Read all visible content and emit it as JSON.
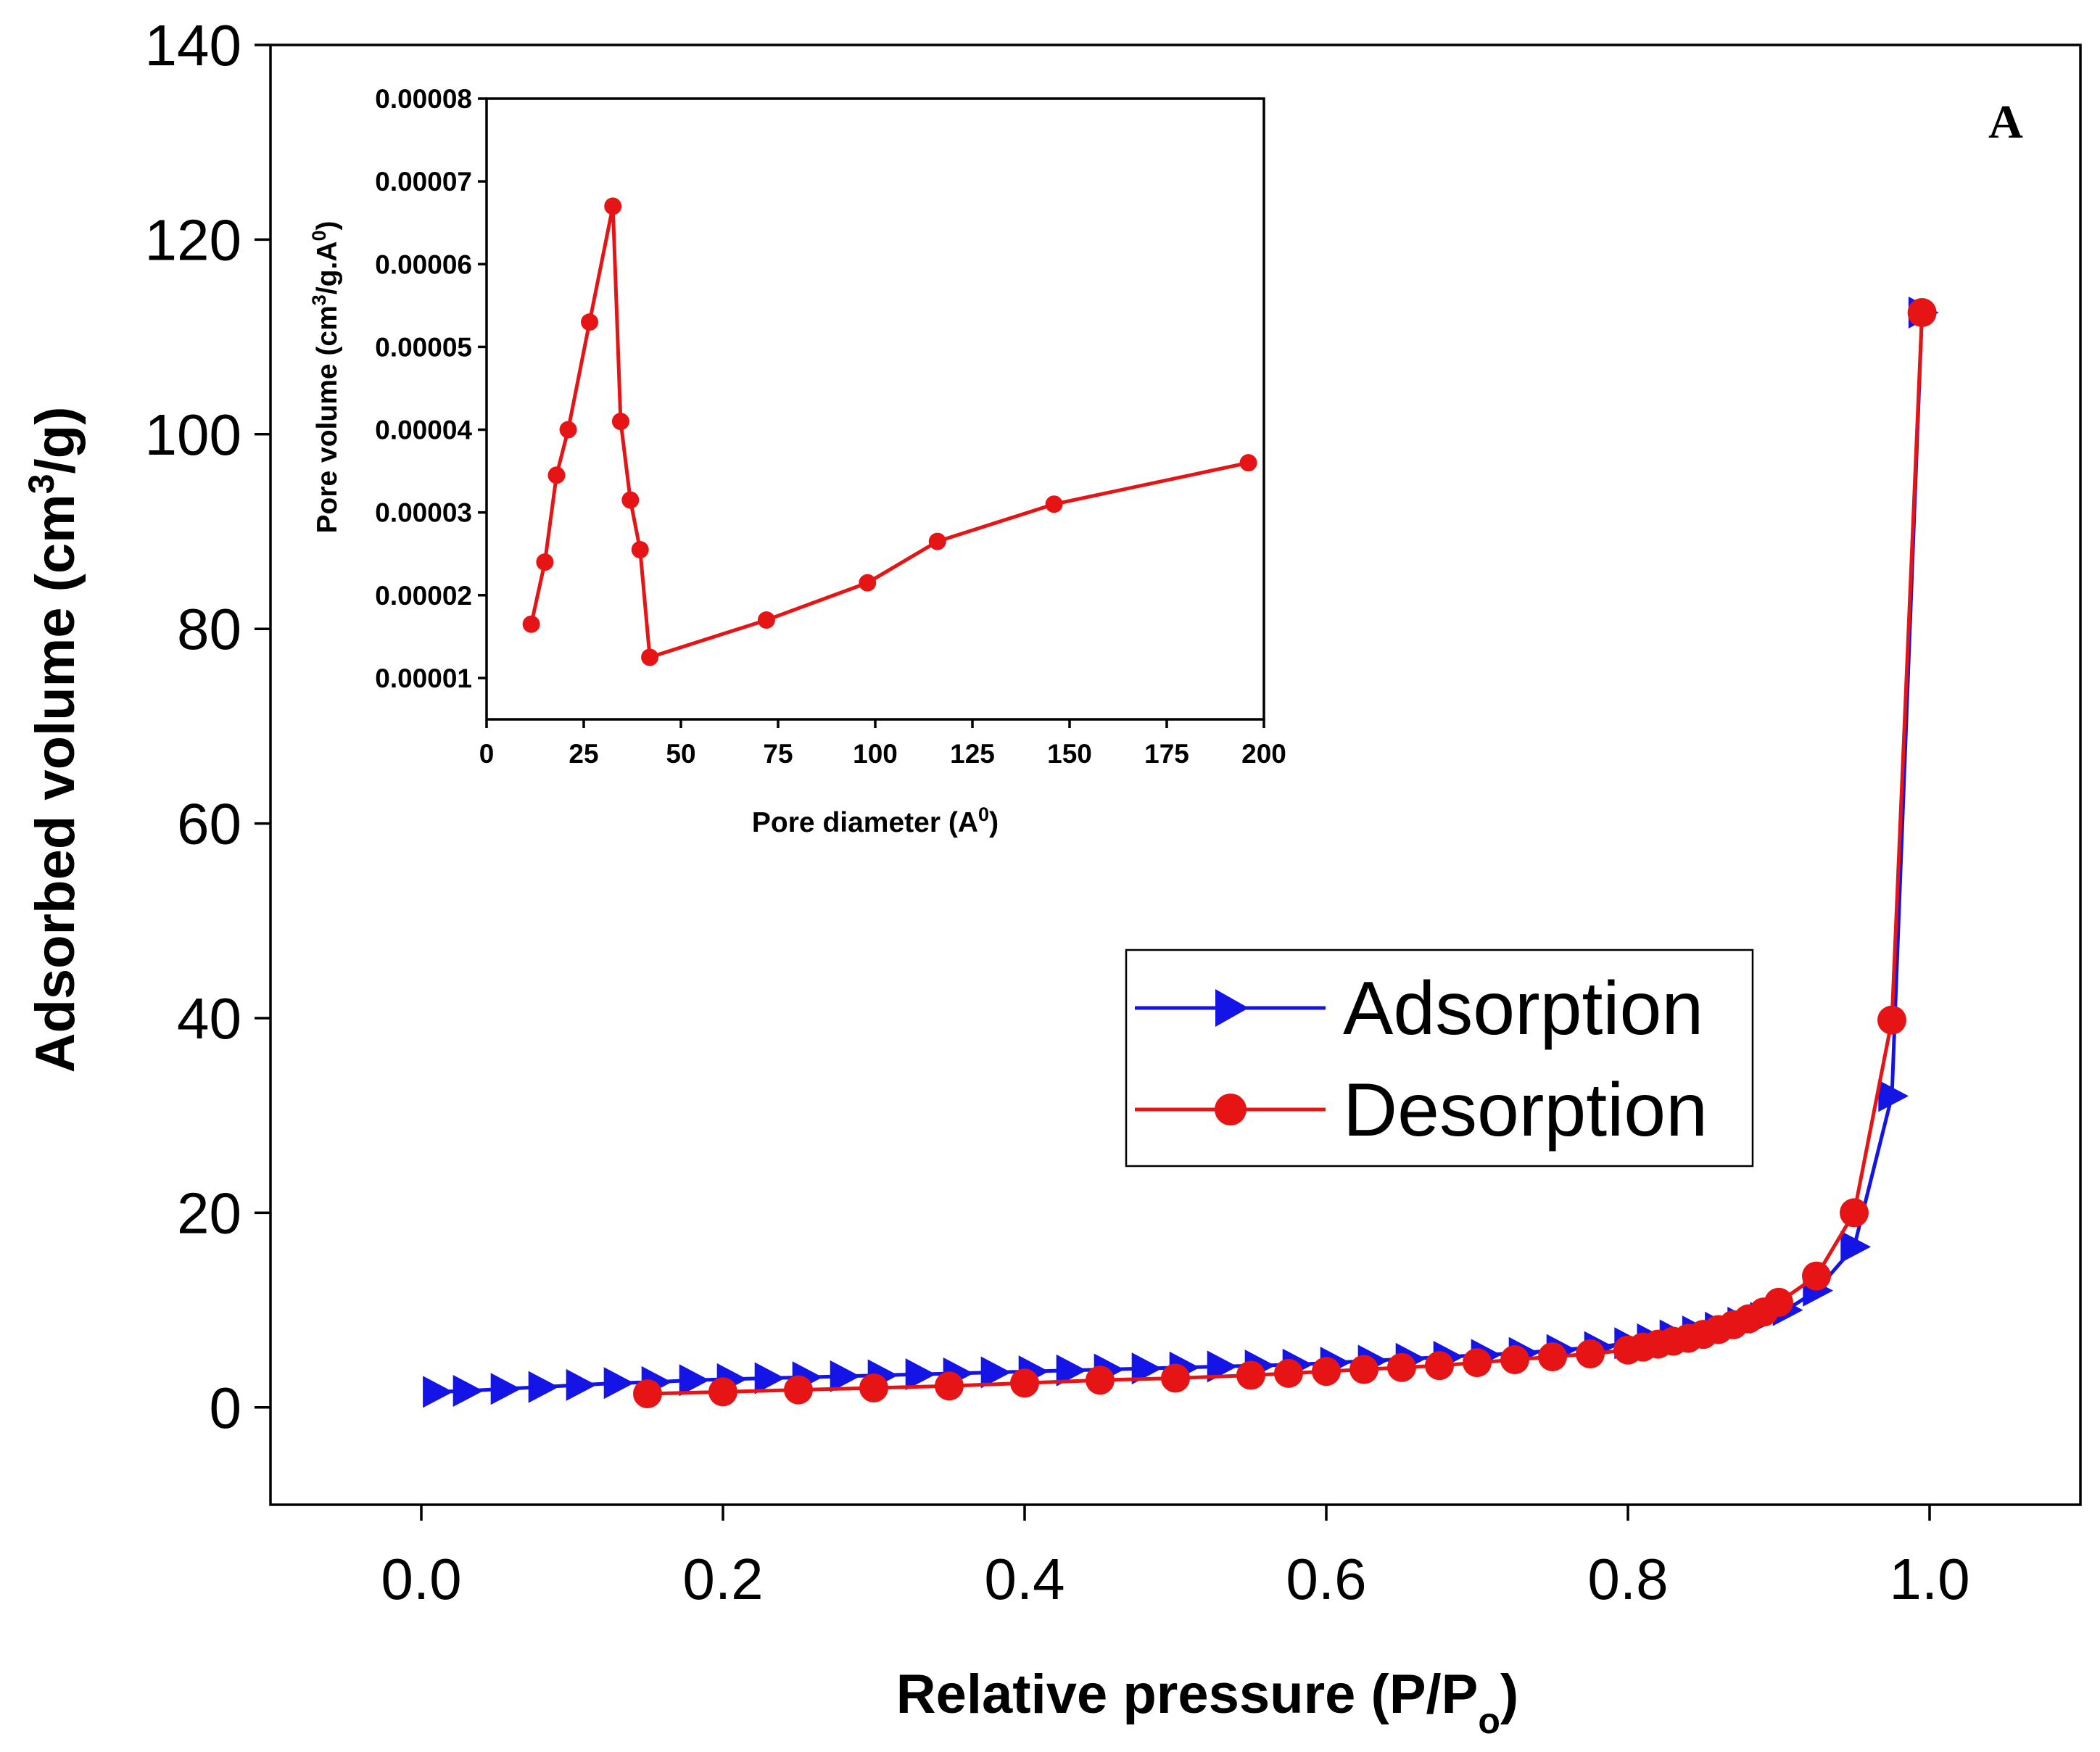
{
  "chart_data": [
    {
      "type": "line",
      "name": "main",
      "panel_label": "A",
      "xlabel": "Relative pressure (P/P",
      "xlabel_sub": "o",
      "xlabel_end": ")",
      "ylabel": "Adsorbed volume (cm",
      "ylabel_sup": "3",
      "ylabel_end": "/g)",
      "xlim": [
        -0.1,
        1.1
      ],
      "ylim": [
        -10,
        140
      ],
      "xticks": [
        "0.0",
        "0.2",
        "0.4",
        "0.6",
        "0.8",
        "1.0"
      ],
      "xtick_values": [
        0,
        0.2,
        0.4,
        0.6,
        0.8,
        1.0
      ],
      "yticks": [
        "0",
        "20",
        "40",
        "60",
        "80",
        "100",
        "120",
        "140"
      ],
      "ytick_values": [
        0,
        20,
        40,
        60,
        80,
        100,
        120,
        140
      ],
      "legend_position": "center-right",
      "series": [
        {
          "name": "Adsorption",
          "color": "#1414e6",
          "marker": "triangle-right",
          "x": [
            0.01,
            0.03,
            0.055,
            0.08,
            0.105,
            0.13,
            0.155,
            0.18,
            0.205,
            0.23,
            0.255,
            0.28,
            0.305,
            0.33,
            0.355,
            0.38,
            0.405,
            0.43,
            0.455,
            0.48,
            0.505,
            0.53,
            0.555,
            0.58,
            0.605,
            0.63,
            0.655,
            0.68,
            0.705,
            0.73,
            0.755,
            0.78,
            0.8,
            0.815,
            0.83,
            0.845,
            0.86,
            0.875,
            0.89,
            0.905,
            0.925,
            0.95,
            0.975,
            0.995
          ],
          "y": [
            1.6,
            1.7,
            1.9,
            2.1,
            2.3,
            2.5,
            2.6,
            2.8,
            2.9,
            3.0,
            3.1,
            3.2,
            3.3,
            3.4,
            3.5,
            3.6,
            3.7,
            3.8,
            3.9,
            4.0,
            4.1,
            4.2,
            4.3,
            4.4,
            4.6,
            4.8,
            5.0,
            5.2,
            5.4,
            5.6,
            5.9,
            6.2,
            6.6,
            7.0,
            7.4,
            7.8,
            8.2,
            8.7,
            9.2,
            10.0,
            12.0,
            16.5,
            32.0,
            112.5
          ]
        },
        {
          "name": "Desorption",
          "color": "#e61414",
          "marker": "circle",
          "x": [
            0.15,
            0.2,
            0.25,
            0.3,
            0.35,
            0.4,
            0.45,
            0.5,
            0.55,
            0.575,
            0.6,
            0.625,
            0.65,
            0.675,
            0.7,
            0.725,
            0.75,
            0.775,
            0.8,
            0.81,
            0.82,
            0.83,
            0.84,
            0.85,
            0.86,
            0.87,
            0.88,
            0.89,
            0.9,
            0.925,
            0.95,
            0.975,
            0.995
          ],
          "y": [
            1.4,
            1.6,
            1.8,
            2.0,
            2.2,
            2.5,
            2.8,
            3.0,
            3.3,
            3.5,
            3.7,
            3.9,
            4.1,
            4.3,
            4.6,
            4.9,
            5.2,
            5.5,
            5.9,
            6.2,
            6.5,
            6.8,
            7.1,
            7.5,
            8.0,
            8.5,
            9.1,
            9.8,
            10.8,
            13.5,
            20.0,
            39.8,
            112.5
          ]
        }
      ]
    },
    {
      "type": "line",
      "name": "inset",
      "xlabel": "Pore diameter (A",
      "xlabel_sup": "0",
      "xlabel_end": ")",
      "ylabel": "Pore volume (cm",
      "ylabel_sup": "3",
      "ylabel_mid": "/g.A",
      "ylabel_sup2": "0",
      "ylabel_end": ")",
      "xlim": [
        0,
        200
      ],
      "ylim": [
        5e-06,
        8e-05
      ],
      "xticks": [
        "0",
        "25",
        "50",
        "75",
        "100",
        "125",
        "150",
        "175",
        "200"
      ],
      "xtick_values": [
        0,
        25,
        50,
        75,
        100,
        125,
        150,
        175,
        200
      ],
      "yticks": [
        "0.00001",
        "0.00002",
        "0.00003",
        "0.00004",
        "0.00005",
        "0.00006",
        "0.00007",
        "0.00008"
      ],
      "ytick_values": [
        1e-05,
        2e-05,
        3e-05,
        4e-05,
        5e-05,
        6e-05,
        7e-05,
        8e-05
      ],
      "series": [
        {
          "name": "Pore volume",
          "color": "#e61414",
          "marker": "circle",
          "x": [
            11.5,
            15,
            18,
            21,
            26.5,
            32.5,
            34.5,
            37,
            39.5,
            42,
            72,
            98,
            116,
            146,
            196
          ],
          "y": [
            1.65e-05,
            2.4e-05,
            3.45e-05,
            4e-05,
            5.3e-05,
            6.7e-05,
            4.1e-05,
            3.15e-05,
            2.55e-05,
            1.25e-05,
            1.7e-05,
            2.15e-05,
            2.65e-05,
            3.1e-05,
            3.6e-05
          ]
        }
      ]
    }
  ]
}
